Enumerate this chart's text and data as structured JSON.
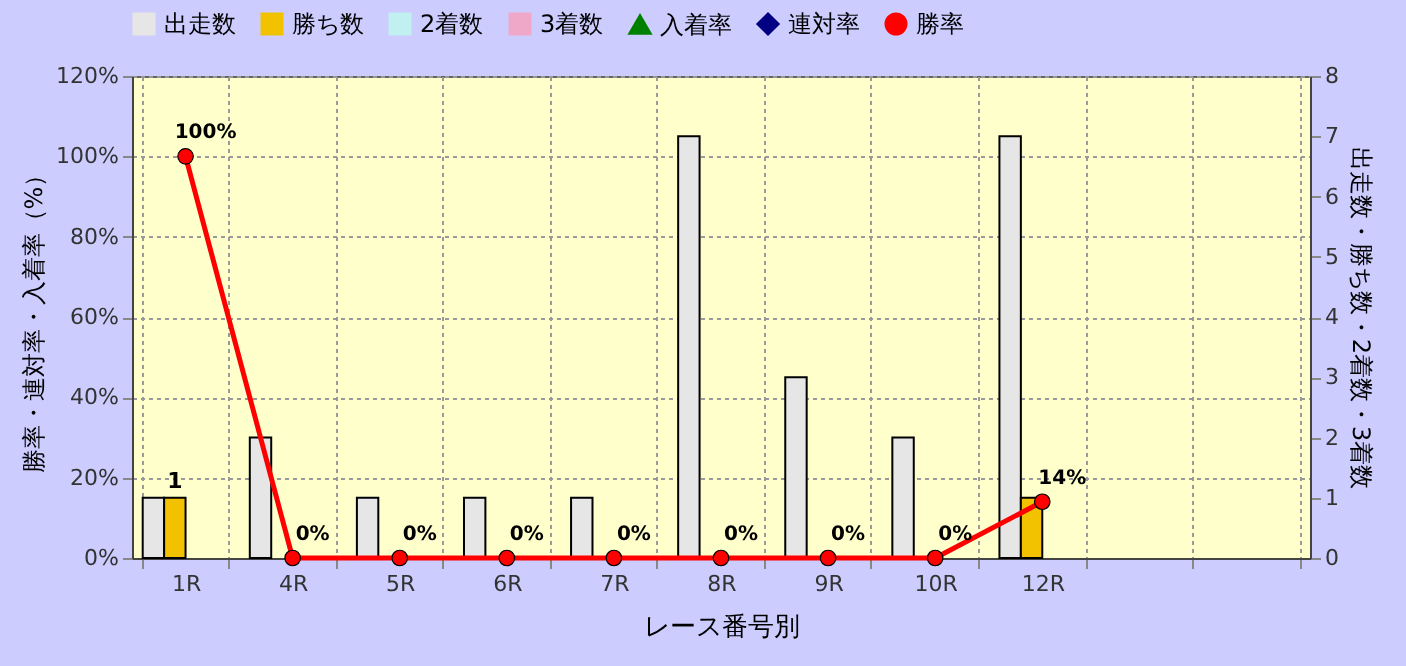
{
  "chart_data": {
    "type": "bar",
    "xlabel": "レース番号別",
    "ylabel": "勝率・連対率・入着率（%）",
    "y2label": "出走数・勝ち数・2着数・3着数",
    "categories": [
      "1R",
      "4R",
      "5R",
      "6R",
      "7R",
      "8R",
      "9R",
      "10R",
      "12R",
      null,
      null
    ],
    "series": [
      {
        "name": "出走数",
        "axis": "y2",
        "color": "#e6e6e6",
        "values": [
          1,
          2,
          1,
          1,
          1,
          7,
          3,
          2,
          7,
          null,
          null
        ]
      },
      {
        "name": "勝ち数",
        "axis": "y2",
        "color": "#f2c200",
        "values": [
          1,
          0,
          0,
          0,
          0,
          0,
          0,
          0,
          1,
          null,
          null
        ],
        "value_labels": [
          "1",
          null,
          null,
          null,
          null,
          null,
          null,
          null,
          null,
          null,
          null
        ]
      },
      {
        "name": "2着数",
        "axis": "y2",
        "color": "#c0f0f0",
        "values": [
          0,
          0,
          0,
          0,
          0,
          0,
          0,
          0,
          0,
          null,
          null
        ]
      },
      {
        "name": "3着数",
        "axis": "y2",
        "color": "#f0a8c8",
        "values": [
          0,
          0,
          0,
          0,
          0,
          0,
          0,
          0,
          0,
          null,
          null
        ]
      },
      {
        "name": "入着率",
        "type": "line",
        "axis": "y",
        "color": "#008000",
        "marker": "triangle",
        "values": [
          null,
          null,
          null,
          null,
          null,
          null,
          null,
          null,
          null,
          null,
          null
        ]
      },
      {
        "name": "連対率",
        "type": "line",
        "axis": "y",
        "color": "#000080",
        "marker": "diamond",
        "values": [
          null,
          null,
          null,
          null,
          null,
          null,
          null,
          null,
          null,
          null,
          null
        ]
      },
      {
        "name": "勝率",
        "type": "line",
        "axis": "y",
        "color": "#ff0000",
        "marker": "circle",
        "values": [
          100,
          0,
          0,
          0,
          0,
          0,
          0,
          0,
          14,
          null,
          null
        ],
        "value_labels": [
          "100%",
          "0%",
          "0%",
          "0%",
          "0%",
          "0%",
          "0%",
          "0%",
          "14%",
          null,
          null
        ]
      }
    ],
    "ylim": [
      0,
      120
    ],
    "yticks": [
      {
        "value": 0,
        "label": "0%"
      },
      {
        "value": 20,
        "label": "20%"
      },
      {
        "value": 40,
        "label": "40%"
      },
      {
        "value": 60,
        "label": "60%"
      },
      {
        "value": 80,
        "label": "80%"
      },
      {
        "value": 100,
        "label": "100%"
      },
      {
        "value": 120,
        "label": "120%"
      }
    ],
    "y2lim": [
      0,
      8
    ],
    "y2ticks": [
      0,
      1,
      2,
      3,
      4,
      5,
      6,
      7,
      8
    ],
    "grid": true,
    "legend": "top"
  }
}
